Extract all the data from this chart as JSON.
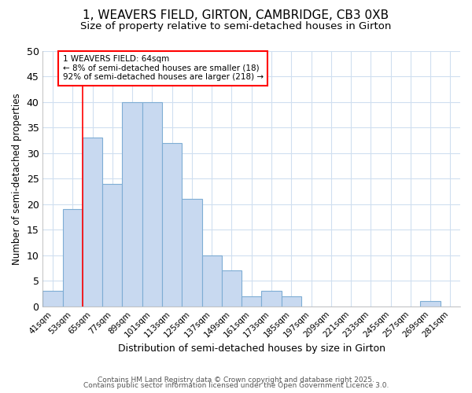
{
  "title": "1, WEAVERS FIELD, GIRTON, CAMBRIDGE, CB3 0XB",
  "subtitle": "Size of property relative to semi-detached houses in Girton",
  "xlabel": "Distribution of semi-detached houses by size in Girton",
  "ylabel": "Number of semi-detached properties",
  "bar_labels": [
    "41sqm",
    "53sqm",
    "65sqm",
    "77sqm",
    "89sqm",
    "101sqm",
    "113sqm",
    "125sqm",
    "137sqm",
    "149sqm",
    "161sqm",
    "173sqm",
    "185sqm",
    "197sqm",
    "209sqm",
    "221sqm",
    "233sqm",
    "245sqm",
    "257sqm",
    "269sqm",
    "281sqm"
  ],
  "bar_values": [
    3,
    19,
    33,
    24,
    40,
    40,
    32,
    21,
    10,
    7,
    2,
    3,
    2,
    0,
    0,
    0,
    0,
    0,
    0,
    1,
    0
  ],
  "bar_color": "#c8d9f0",
  "bar_edge_color": "#7eadd4",
  "red_line_index": 2,
  "ylim": [
    0,
    50
  ],
  "yticks": [
    0,
    5,
    10,
    15,
    20,
    25,
    30,
    35,
    40,
    45,
    50
  ],
  "annotation_title": "1 WEAVERS FIELD: 64sqm",
  "annotation_line1": "← 8% of semi-detached houses are smaller (18)",
  "annotation_line2": "92% of semi-detached houses are larger (218) →",
  "footer_line1": "Contains HM Land Registry data © Crown copyright and database right 2025.",
  "footer_line2": "Contains public sector information licensed under the Open Government Licence 3.0.",
  "bg_color": "#ffffff",
  "plot_bg_color": "#ffffff",
  "grid_color": "#d0dff0",
  "title_fontsize": 11,
  "subtitle_fontsize": 9.5
}
